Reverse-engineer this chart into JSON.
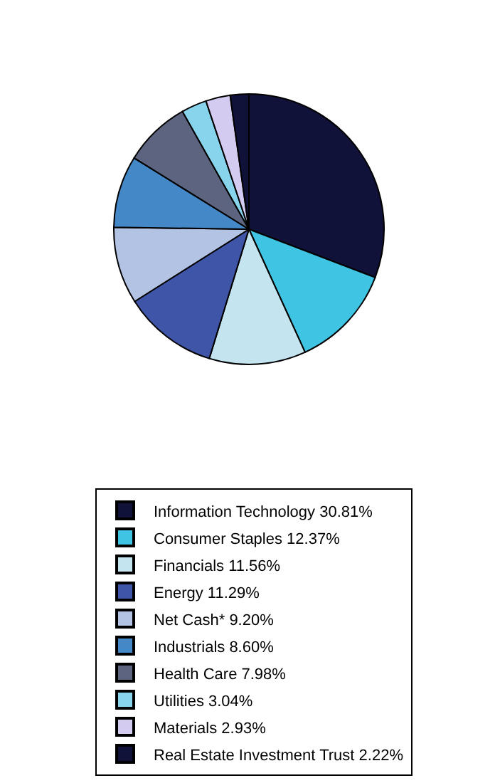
{
  "chart_data": {
    "type": "pie",
    "categories": [
      "Information Technology 30.81%",
      "Consumer Staples 12.37%",
      "Financials 11.56%",
      "Energy 11.29%",
      "Net Cash* 9.20%",
      "Industrials 8.60%",
      "Health Care 7.98%",
      "Utilities 3.04%",
      "Materials 2.93%",
      "Real Estate Investment Trust 2.22%"
    ],
    "values": [
      30.81,
      12.37,
      11.56,
      11.29,
      9.2,
      8.6,
      7.98,
      3.04,
      2.93,
      2.22
    ],
    "colors": [
      "#10123a",
      "#40c4e4",
      "#c4e4f0",
      "#3f56a8",
      "#b3c3e3",
      "#4588c8",
      "#5c6480",
      "#88d4ec",
      "#d4ccf0",
      "#10123a"
    ],
    "legend": "bottom"
  }
}
